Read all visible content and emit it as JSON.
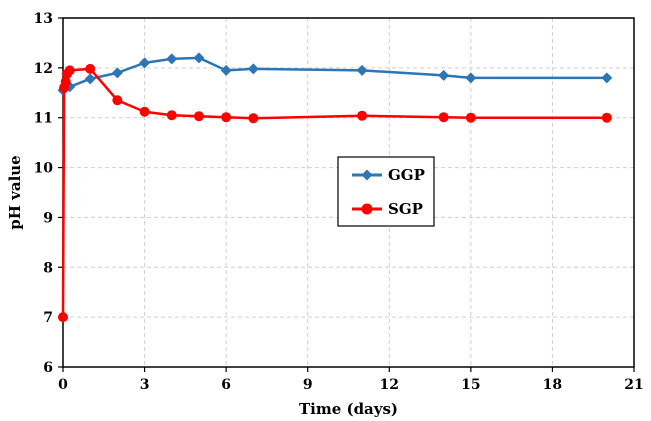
{
  "chart_data": {
    "type": "line",
    "title": "",
    "xlabel": "Time (days)",
    "ylabel": "pH value",
    "xlim": [
      0,
      21
    ],
    "ylim": [
      6,
      13
    ],
    "xticks": [
      0,
      3,
      6,
      9,
      12,
      15,
      18,
      21
    ],
    "yticks": [
      6,
      7,
      8,
      9,
      10,
      11,
      12,
      13
    ],
    "grid": true,
    "legend_position": "center-right",
    "series": [
      {
        "name": "GGP",
        "color": "#2E75B6",
        "marker": "diamond",
        "x": [
          0,
          0.25,
          1,
          2,
          3,
          4,
          5,
          6,
          7,
          11,
          14,
          15,
          20
        ],
        "y": [
          11.55,
          11.62,
          11.78,
          11.9,
          12.1,
          12.18,
          12.2,
          11.95,
          11.98,
          11.95,
          11.85,
          11.8,
          11.8
        ]
      },
      {
        "name": "SGP",
        "color": "#FF0000",
        "marker": "circle",
        "x": [
          0,
          0.04,
          0.1,
          0.15,
          0.25,
          1,
          2,
          3,
          4,
          5,
          6,
          7,
          11,
          14,
          15,
          20
        ],
        "y": [
          7.0,
          11.6,
          11.72,
          11.88,
          11.95,
          11.98,
          11.35,
          11.12,
          11.05,
          11.03,
          11.01,
          10.99,
          11.04,
          11.01,
          11.0,
          11.0
        ]
      }
    ]
  }
}
